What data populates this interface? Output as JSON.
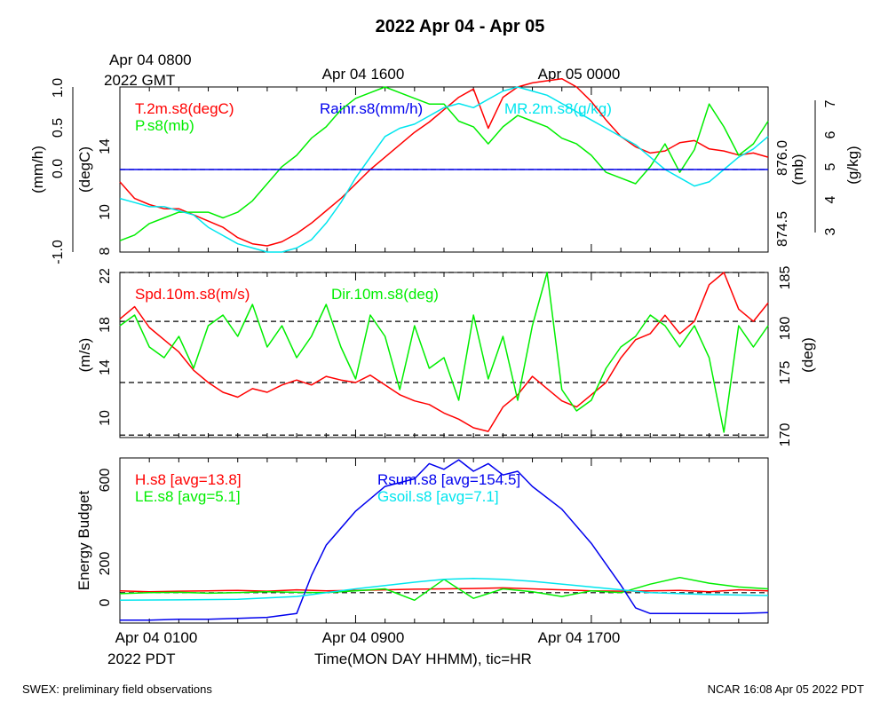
{
  "page": {
    "title": "2022 Apr 04 - Apr 05",
    "footer_left": "SWEX: preliminary field observations",
    "footer_right": "NCAR 16:08 Apr 05 2022 PDT",
    "top_time_labels": [
      "Apr 04 0800",
      "Apr 04 1600",
      "Apr 05 0000"
    ],
    "top_year_label": "2022 GMT",
    "bottom_time_labels": [
      "Apr 04 0100",
      "Apr 04 0900",
      "Apr 04 1700"
    ],
    "bottom_year_label": "2022 PDT",
    "xlabel": "Time(MON DAY HHMM), tic=HR"
  },
  "colors": {
    "red": "#ff0000",
    "green": "#00ee00",
    "blue": "#0000ee",
    "cyan": "#00e5ee",
    "black": "#000000"
  },
  "chart_data": [
    {
      "type": "line",
      "panel": "top",
      "x_range_hours": [
        0,
        22
      ],
      "x_units": "hours after Apr 04 0100 PDT",
      "axes": {
        "left_outer": {
          "label": "(mm/h)",
          "ticks": [
            "-1.0",
            "0.0",
            "0.5",
            "1.0"
          ],
          "range": [
            -1.0,
            1.0
          ]
        },
        "left_inner": {
          "label": "(degC)",
          "ticks": [
            "8",
            "10",
            "14"
          ],
          "range": [
            8,
            16
          ]
        },
        "right_inner": {
          "label": "(mb)",
          "ticks": [
            "874.5",
            "876.0"
          ],
          "range": [
            874.3,
            877.2
          ]
        },
        "right_outer": {
          "label": "(g/kg)",
          "ticks": [
            "3",
            "4",
            "5",
            "6",
            "7"
          ],
          "range": [
            3,
            7
          ]
        }
      },
      "series": [
        {
          "name": "T.2m.s8(degC)",
          "color": "red",
          "axis": "left_inner",
          "x": [
            0,
            0.5,
            1,
            1.5,
            2,
            2.5,
            3,
            3.5,
            4,
            4.5,
            5,
            5.5,
            6,
            6.5,
            7,
            7.5,
            8,
            8.5,
            9,
            9.5,
            10,
            10.5,
            11,
            11.5,
            12,
            12.5,
            13,
            13.5,
            14,
            14.5,
            15,
            15.5,
            16,
            16.5,
            17,
            17.5,
            18,
            18.5,
            19,
            19.5,
            20,
            20.5,
            21,
            21.5,
            22
          ],
          "y": [
            11.4,
            10.6,
            10.3,
            10.1,
            10.1,
            9.8,
            9.5,
            9.2,
            8.7,
            8.4,
            8.3,
            8.5,
            8.9,
            9.4,
            10.0,
            10.6,
            11.3,
            12.0,
            12.6,
            13.2,
            13.8,
            14.3,
            14.9,
            15.5,
            15.9,
            14.0,
            15.5,
            16.0,
            16.2,
            16.3,
            16.4,
            16.0,
            15.3,
            14.4,
            13.6,
            13.1,
            12.8,
            12.9,
            13.3,
            13.4,
            13.0,
            12.9,
            12.7,
            12.8,
            12.6
          ]
        },
        {
          "name": "P.s8(mb)",
          "color": "green",
          "axis": "right_inner",
          "x": [
            0,
            0.5,
            1,
            1.5,
            2,
            2.5,
            3,
            3.5,
            4,
            4.5,
            5,
            5.5,
            6,
            6.5,
            7,
            7.5,
            8,
            8.5,
            9,
            9.5,
            10,
            10.5,
            11,
            11.5,
            12,
            12.5,
            13,
            13.5,
            14,
            14.5,
            15,
            15.5,
            16,
            16.5,
            17,
            17.5,
            18,
            18.5,
            19,
            19.5,
            20,
            20.5,
            21,
            21.5,
            22
          ],
          "y": [
            874.5,
            874.6,
            874.8,
            874.9,
            875.0,
            875.0,
            875.0,
            874.9,
            875.0,
            875.2,
            875.5,
            875.8,
            876.0,
            876.3,
            876.5,
            876.8,
            877.0,
            877.1,
            877.2,
            877.1,
            877.0,
            876.9,
            876.9,
            876.6,
            876.5,
            876.2,
            876.5,
            876.7,
            876.6,
            876.5,
            876.3,
            876.2,
            876.0,
            875.7,
            875.6,
            875.5,
            875.8,
            876.2,
            875.7,
            876.1,
            876.9,
            876.5,
            876.0,
            876.2,
            876.6
          ]
        },
        {
          "name": "MR.2m.s8(g/kg)",
          "color": "cyan",
          "axis": "right_outer",
          "x": [
            0,
            0.5,
            1,
            1.5,
            2,
            2.5,
            3,
            3.5,
            4,
            4.5,
            5,
            5.5,
            6,
            6.5,
            7,
            7.5,
            8,
            8.5,
            9,
            9.5,
            10,
            10.5,
            11,
            11.5,
            12,
            12.5,
            13,
            13.5,
            14,
            14.5,
            15,
            15.5,
            16,
            16.5,
            17,
            17.5,
            18,
            18.5,
            19,
            19.5,
            20,
            20.5,
            21,
            21.5,
            22
          ],
          "y": [
            4.3,
            4.2,
            4.1,
            4.1,
            4.0,
            3.9,
            3.6,
            3.4,
            3.2,
            3.1,
            3.0,
            3.0,
            3.1,
            3.3,
            3.7,
            4.2,
            4.8,
            5.3,
            5.8,
            6.0,
            6.1,
            6.3,
            6.5,
            6.6,
            6.5,
            6.7,
            6.9,
            7.0,
            6.9,
            6.8,
            6.6,
            6.4,
            6.2,
            6.0,
            5.8,
            5.6,
            5.3,
            5.0,
            4.8,
            4.6,
            4.7,
            5.0,
            5.3,
            5.5,
            5.8
          ]
        },
        {
          "name": "Rainr.s8(mm/h)",
          "color": "blue",
          "axis": "left_outer",
          "x": [
            0,
            22
          ],
          "y": [
            0.0,
            0.0
          ]
        }
      ],
      "reference_lines": [
        {
          "axis": "left_outer",
          "value": 0.0,
          "style": "dashed"
        }
      ]
    },
    {
      "type": "line",
      "panel": "middle",
      "x_range_hours": [
        0,
        22
      ],
      "axes": {
        "left": {
          "label": "(m/s)",
          "ticks": [
            "10",
            "14",
            "18",
            "22"
          ],
          "range": [
            8.5,
            22
          ]
        },
        "right": {
          "label": "(deg)",
          "ticks": [
            "170",
            "175",
            "180",
            "185"
          ],
          "range": [
            169.5,
            185
          ]
        }
      },
      "series": [
        {
          "name": "Spd.10m.s8(m/s)",
          "color": "red",
          "axis": "left",
          "x": [
            0,
            0.5,
            1,
            1.5,
            2,
            2.5,
            3,
            3.5,
            4,
            4.5,
            5,
            5.5,
            6,
            6.5,
            7,
            7.5,
            8,
            8.5,
            9,
            9.5,
            10,
            10.5,
            11,
            11.5,
            12,
            12.5,
            13,
            13.5,
            14,
            14.5,
            15,
            15.5,
            16,
            16.5,
            17,
            17.5,
            18,
            18.5,
            19,
            19.5,
            20,
            20.5,
            21,
            21.5,
            22
          ],
          "y": [
            18.2,
            19.2,
            17.5,
            16.5,
            15.5,
            14.0,
            13.0,
            12.2,
            11.8,
            12.5,
            12.2,
            12.8,
            13.2,
            12.8,
            13.5,
            13.2,
            13.0,
            13.6,
            12.8,
            12.0,
            11.5,
            11.2,
            10.5,
            10.0,
            9.3,
            9.0,
            11.0,
            12.0,
            13.5,
            12.5,
            11.5,
            11.0,
            12.0,
            13.0,
            15.0,
            16.5,
            17.0,
            18.5,
            17.0,
            18.0,
            21.0,
            22.0,
            19.0,
            18.0,
            19.5
          ]
        },
        {
          "name": "Dir.10m.s8(deg)",
          "color": "green",
          "axis": "right",
          "x": [
            0,
            0.5,
            1,
            1.5,
            2,
            2.5,
            3,
            3.5,
            4,
            4.5,
            5,
            5.5,
            6,
            6.5,
            7,
            7.5,
            8,
            8.5,
            9,
            9.5,
            10,
            10.5,
            11,
            11.5,
            12,
            12.5,
            13,
            13.5,
            14,
            14.5,
            15,
            15.5,
            16,
            16.5,
            17,
            17.5,
            18,
            18.5,
            19,
            19.5,
            20,
            20.5,
            21,
            21.5,
            22
          ],
          "y": [
            180,
            181,
            178,
            177,
            179,
            176,
            180,
            181,
            179,
            182,
            178,
            180,
            177,
            179,
            182,
            178,
            175,
            181,
            179,
            174,
            180,
            176,
            177,
            173,
            181,
            175,
            179,
            173,
            180,
            185,
            174,
            172,
            173,
            176,
            178,
            179,
            181,
            180,
            178,
            180,
            177,
            170,
            180,
            178,
            180
          ]
        }
      ],
      "reference_lines": [
        {
          "axis": "left",
          "value": 22.0,
          "style": "dashed"
        },
        {
          "axis": "left",
          "value": 18.0,
          "style": "dashed"
        },
        {
          "axis": "left",
          "value": 13.0,
          "style": "dashed"
        },
        {
          "axis": "left",
          "value": 8.7,
          "style": "dashed"
        }
      ]
    },
    {
      "type": "line",
      "panel": "bottom",
      "x_range_hours": [
        0,
        22
      ],
      "axes": {
        "left": {
          "label": "Energy Budget",
          "ticks": [
            "0",
            "200",
            "600"
          ],
          "range": [
            -160,
            710
          ]
        }
      },
      "series": [
        {
          "name": "H.s8 [avg=13.8]",
          "color": "red",
          "axis": "left",
          "x": [
            0,
            1,
            2,
            3,
            4,
            5,
            6,
            7,
            8,
            9,
            10,
            11,
            12,
            13,
            14,
            15,
            16,
            17,
            18,
            19,
            20,
            21,
            22
          ],
          "y": [
            10,
            5,
            8,
            10,
            12,
            8,
            15,
            10,
            12,
            15,
            18,
            20,
            22,
            25,
            20,
            15,
            10,
            8,
            10,
            12,
            5,
            15,
            10
          ]
        },
        {
          "name": "LE.s8 [avg=5.1]",
          "color": "green",
          "axis": "left",
          "x": [
            0,
            1,
            2,
            3,
            4,
            5,
            6,
            7,
            8,
            9,
            10,
            11,
            12,
            13,
            14,
            15,
            16,
            17,
            18,
            19,
            20,
            21,
            22
          ],
          "y": [
            -5,
            0,
            2,
            -3,
            0,
            5,
            2,
            0,
            10,
            20,
            -40,
            70,
            -30,
            20,
            5,
            -20,
            10,
            0,
            45,
            80,
            50,
            30,
            20
          ]
        },
        {
          "name": "Rsum.s8 [avg=154.5]",
          "color": "blue",
          "axis": "left",
          "x": [
            0,
            1,
            2,
            3,
            4,
            5,
            6,
            6.5,
            7,
            8,
            9,
            10,
            10.5,
            11,
            11.5,
            12,
            12.5,
            13,
            13.5,
            14,
            15,
            16,
            17,
            17.5,
            18,
            19,
            20,
            21,
            22
          ],
          "y": [
            -145,
            -145,
            -140,
            -140,
            -135,
            -130,
            -110,
            90,
            250,
            430,
            560,
            600,
            680,
            650,
            700,
            640,
            680,
            620,
            640,
            560,
            440,
            260,
            40,
            -80,
            -110,
            -110,
            -110,
            -110,
            -105
          ]
        },
        {
          "name": "Gsoil.s8 [avg=7.1]",
          "color": "cyan",
          "axis": "left",
          "x": [
            0,
            2,
            4,
            6,
            8,
            10,
            11,
            12,
            13,
            14,
            16,
            18,
            20,
            22
          ],
          "y": [
            -40,
            -38,
            -35,
            -20,
            20,
            55,
            70,
            75,
            70,
            60,
            30,
            0,
            -10,
            -15
          ]
        }
      ],
      "reference_lines": [
        {
          "axis": "left",
          "value": 0,
          "style": "dashed"
        }
      ]
    }
  ]
}
